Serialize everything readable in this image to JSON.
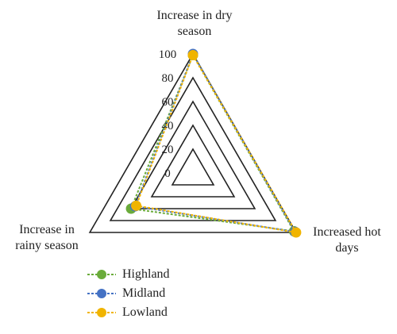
{
  "chart_data": {
    "type": "radar",
    "axes": [
      "Increase in dry season",
      "Increased hot days",
      "Increase in rainy season"
    ],
    "axis_label_lines": [
      [
        "Increase in dry",
        "season"
      ],
      [
        "Increased hot",
        "days"
      ],
      [
        "Increase in",
        "rainy season"
      ]
    ],
    "radial_ticks": [
      "0",
      "20",
      "40",
      "60",
      "80",
      "100"
    ],
    "range": [
      0,
      100
    ],
    "series": [
      {
        "name": "Highland",
        "color": "#6aab3a",
        "values": [
          99,
          98,
          60
        ]
      },
      {
        "name": "Midland",
        "color": "#4472c4",
        "values": [
          100,
          99,
          56
        ]
      },
      {
        "name": "Lowland",
        "color": "#f0b400",
        "values": [
          99,
          100,
          55
        ]
      }
    ],
    "legend_position": "bottom-left",
    "grid": true
  }
}
